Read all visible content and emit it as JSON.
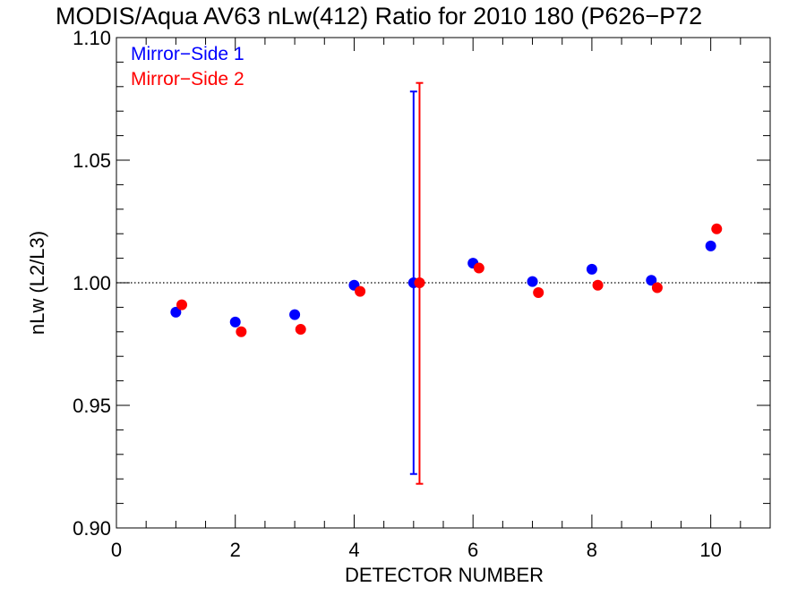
{
  "chart_data": {
    "type": "scatter",
    "title": "MODIS/Aqua AV63 nLw(412) Ratio for 2010 180 (P626−P72",
    "xlabel": "DETECTOR NUMBER",
    "ylabel": "nLw (L2/L3)",
    "xlim": [
      0,
      11
    ],
    "ylim": [
      0.9,
      1.1
    ],
    "x_ticks": [
      0,
      2,
      4,
      6,
      8,
      10
    ],
    "x_tick_labels": [
      "0",
      "2",
      "4",
      "6",
      "8",
      "10"
    ],
    "y_ticks": [
      0.9,
      0.95,
      1.0,
      1.05,
      1.1
    ],
    "y_tick_labels": [
      "0.90",
      "0.95",
      "1.00",
      "1.05",
      "1.10"
    ],
    "x_minor_step": 0.5,
    "y_minor_step": 0.01,
    "reference_line": 1.0,
    "legend_position": "top-left",
    "series": [
      {
        "name": "Mirror−Side 1",
        "color": "#0000ff",
        "x": [
          1,
          2,
          3,
          4,
          5,
          6,
          7,
          8,
          9,
          10
        ],
        "y": [
          0.988,
          0.984,
          0.987,
          0.999,
          1.0,
          1.008,
          1.0005,
          1.0055,
          1.001,
          1.015
        ],
        "error_bar": {
          "x": 5,
          "low": 0.922,
          "high": 1.078
        }
      },
      {
        "name": "Mirror−Side 2",
        "color": "#ff0000",
        "x": [
          1.1,
          2.1,
          3.1,
          4.1,
          5.1,
          6.1,
          7.1,
          8.1,
          9.1,
          10.1
        ],
        "y": [
          0.991,
          0.98,
          0.981,
          0.9965,
          1.0,
          1.006,
          0.996,
          0.999,
          0.998,
          1.022
        ],
        "error_bar": {
          "x": 5.1,
          "low": 0.918,
          "high": 1.0815
        }
      }
    ]
  }
}
